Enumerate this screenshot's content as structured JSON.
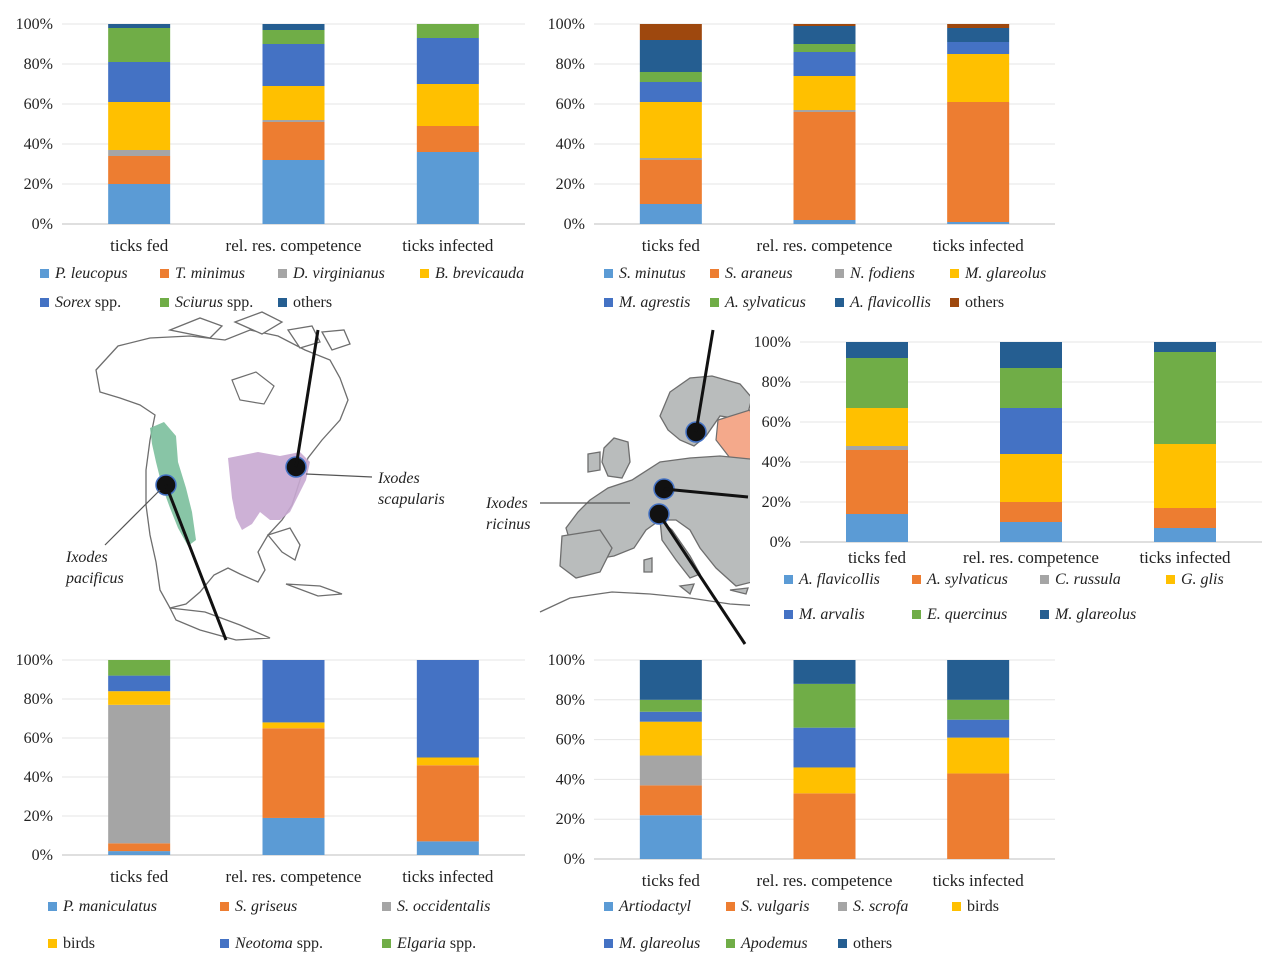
{
  "chart_data": [
    {
      "type": "bar",
      "stacked": true,
      "categories": [
        "ticks fed",
        "rel. res. competence",
        "ticks infected"
      ],
      "ylim": [
        0,
        100
      ],
      "yticks": [
        "0%",
        "20%",
        "40%",
        "60%",
        "80%",
        "100%"
      ],
      "series": [
        {
          "name": "P. leucopus",
          "italic": "P. leucopus",
          "roman": "",
          "color": "#5b9bd5",
          "values": [
            20,
            32,
            36
          ]
        },
        {
          "name": "T. minimus",
          "italic": "T. minimus",
          "roman": "",
          "color": "#ed7d31",
          "values": [
            14,
            19,
            13
          ]
        },
        {
          "name": "D. virginianus",
          "italic": "D. virginianus",
          "roman": "",
          "color": "#a5a5a5",
          "values": [
            3,
            1,
            0
          ]
        },
        {
          "name": "B. brevicauda",
          "italic": "B. brevicauda",
          "roman": "",
          "color": "#ffc000",
          "values": [
            24,
            17,
            21
          ]
        },
        {
          "name": "Sorex spp.",
          "italic": "Sorex",
          "roman": " spp.",
          "color": "#4472c4",
          "values": [
            20,
            21,
            23
          ]
        },
        {
          "name": "Sciurus spp.",
          "italic": "Sciurus",
          "roman": " spp.",
          "color": "#70ad47",
          "values": [
            17,
            7,
            7
          ]
        },
        {
          "name": "others",
          "italic": "",
          "roman": "others",
          "color": "#255e91",
          "values": [
            2,
            3,
            0
          ]
        }
      ]
    },
    {
      "type": "bar",
      "stacked": true,
      "categories": [
        "ticks fed",
        "rel. res. competence",
        "ticks infected"
      ],
      "ylim": [
        0,
        100
      ],
      "yticks": [
        "0%",
        "20%",
        "40%",
        "60%",
        "80%",
        "100%"
      ],
      "series": [
        {
          "name": "S. minutus",
          "italic": "S. minutus",
          "roman": "",
          "color": "#5b9bd5",
          "values": [
            10,
            2,
            1
          ]
        },
        {
          "name": "S. araneus",
          "italic": "S. araneus",
          "roman": "",
          "color": "#ed7d31",
          "values": [
            22,
            54,
            60
          ]
        },
        {
          "name": "N. fodiens",
          "italic": "N. fodiens",
          "roman": "",
          "color": "#a5a5a5",
          "values": [
            1,
            1,
            0
          ]
        },
        {
          "name": "M. glareolus",
          "italic": "M. glareolus",
          "roman": "",
          "color": "#ffc000",
          "values": [
            28,
            17,
            24
          ]
        },
        {
          "name": "M. agrestis",
          "italic": "M. agrestis",
          "roman": "",
          "color": "#4472c4",
          "values": [
            10,
            12,
            6
          ]
        },
        {
          "name": "A. sylvaticus",
          "italic": "A. sylvaticus",
          "roman": "",
          "color": "#70ad47",
          "values": [
            5,
            4,
            0
          ]
        },
        {
          "name": "A. flavicollis",
          "italic": "A. flavicollis",
          "roman": "",
          "color": "#255e91",
          "values": [
            16,
            9,
            7
          ]
        },
        {
          "name": "others",
          "italic": "",
          "roman": "others",
          "color": "#9e480e",
          "values": [
            8,
            1,
            2
          ]
        }
      ]
    },
    {
      "type": "bar",
      "stacked": true,
      "categories": [
        "ticks fed",
        "rel. res. competence",
        "ticks infected"
      ],
      "ylim": [
        0,
        100
      ],
      "yticks": [
        "0%",
        "20%",
        "40%",
        "60%",
        "80%",
        "100%"
      ],
      "series": [
        {
          "name": "A. flavicollis",
          "italic": "A. flavicollis",
          "roman": "",
          "color": "#5b9bd5",
          "values": [
            14,
            10,
            7
          ]
        },
        {
          "name": "A. sylvaticus",
          "italic": "A. sylvaticus",
          "roman": "",
          "color": "#ed7d31",
          "values": [
            32,
            10,
            10
          ]
        },
        {
          "name": "C. russula",
          "italic": "C. russula",
          "roman": "",
          "color": "#a5a5a5",
          "values": [
            2,
            0,
            0
          ]
        },
        {
          "name": "G. glis",
          "italic": "G. glis",
          "roman": "",
          "color": "#ffc000",
          "values": [
            19,
            24,
            32
          ]
        },
        {
          "name": "M. arvalis",
          "italic": "M. arvalis",
          "roman": "",
          "color": "#4472c4",
          "values": [
            0,
            23,
            0
          ]
        },
        {
          "name": "E. quercinus",
          "italic": "E. quercinus",
          "roman": "",
          "color": "#70ad47",
          "values": [
            25,
            20,
            46
          ]
        },
        {
          "name": "M. glareolus",
          "italic": "M. glareolus",
          "roman": "",
          "color": "#255e91",
          "values": [
            8,
            13,
            5
          ]
        }
      ]
    },
    {
      "type": "bar",
      "stacked": true,
      "categories": [
        "ticks fed",
        "rel. res. competence",
        "ticks infected"
      ],
      "ylim": [
        0,
        100
      ],
      "yticks": [
        "0%",
        "20%",
        "40%",
        "60%",
        "80%",
        "100%"
      ],
      "series": [
        {
          "name": "P. maniculatus",
          "italic": "P. maniculatus",
          "roman": "",
          "color": "#5b9bd5",
          "values": [
            2,
            19,
            7
          ]
        },
        {
          "name": "S. griseus",
          "italic": "S. griseus",
          "roman": "",
          "color": "#ed7d31",
          "values": [
            4,
            46,
            39
          ]
        },
        {
          "name": "S. occidentalis",
          "italic": "S. occidentalis",
          "roman": "",
          "color": "#a5a5a5",
          "values": [
            71,
            0,
            0
          ]
        },
        {
          "name": "birds",
          "italic": "",
          "roman": "birds",
          "color": "#ffc000",
          "values": [
            7,
            3,
            4
          ]
        },
        {
          "name": "Neotoma spp.",
          "italic": "Neotoma",
          "roman": " spp.",
          "color": "#4472c4",
          "values": [
            8,
            32,
            50
          ]
        },
        {
          "name": "Elgaria spp.",
          "italic": "Elgaria",
          "roman": " spp.",
          "color": "#70ad47",
          "values": [
            8,
            0,
            0
          ]
        }
      ]
    },
    {
      "type": "bar",
      "stacked": true,
      "categories": [
        "ticks fed",
        "rel. res. competence",
        "ticks infected"
      ],
      "ylim": [
        0,
        100
      ],
      "yticks": [
        "0%",
        "20%",
        "40%",
        "60%",
        "80%",
        "100%"
      ],
      "series": [
        {
          "name": "Artiodactyl",
          "italic": "Artiodactyl",
          "roman": "",
          "color": "#5b9bd5",
          "values": [
            22,
            0,
            0
          ]
        },
        {
          "name": "S. vulgaris",
          "italic": "S. vulgaris",
          "roman": "",
          "color": "#ed7d31",
          "values": [
            15,
            33,
            43
          ]
        },
        {
          "name": "S. scrofa",
          "italic": "S. scrofa",
          "roman": "",
          "color": "#a5a5a5",
          "values": [
            15,
            0,
            0
          ]
        },
        {
          "name": "birds",
          "italic": "",
          "roman": "birds",
          "color": "#ffc000",
          "values": [
            17,
            13,
            18
          ]
        },
        {
          "name": "M. glareolus",
          "italic": "M. glareolus",
          "roman": "",
          "color": "#4472c4",
          "values": [
            5,
            20,
            9
          ]
        },
        {
          "name": "Apodemus",
          "italic": "Apodemus",
          "roman": "",
          "color": "#70ad47",
          "values": [
            6,
            22,
            10
          ]
        },
        {
          "name": "others",
          "italic": "",
          "roman": "others",
          "color": "#255e91",
          "values": [
            20,
            12,
            20
          ]
        }
      ]
    }
  ],
  "map_labels": {
    "pacificus": [
      "Ixodes",
      "pacificus"
    ],
    "scapularis": [
      "Ixodes",
      "scapularis"
    ],
    "ricinus": [
      "Ixodes",
      "ricinus"
    ]
  }
}
